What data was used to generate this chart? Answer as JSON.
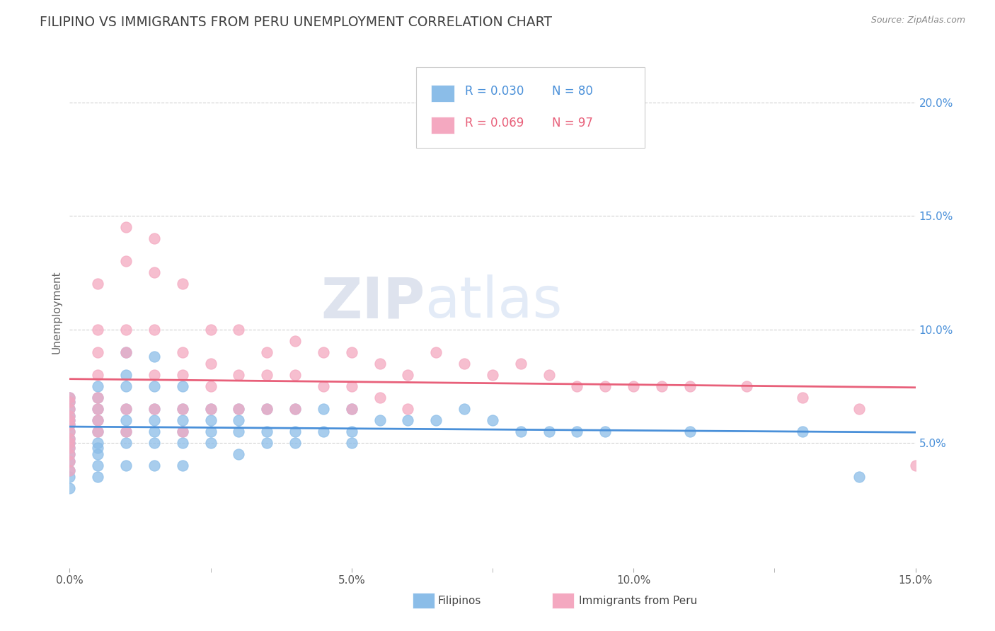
{
  "title": "FILIPINO VS IMMIGRANTS FROM PERU UNEMPLOYMENT CORRELATION CHART",
  "source_text": "Source: ZipAtlas.com",
  "ylabel": "Unemployment",
  "xlim": [
    0.0,
    0.15
  ],
  "ylim": [
    -0.005,
    0.22
  ],
  "xtick_labels": [
    "0.0%",
    "",
    "5.0%",
    "",
    "10.0%",
    "",
    "15.0%"
  ],
  "xtick_values": [
    0.0,
    0.025,
    0.05,
    0.075,
    0.1,
    0.125,
    0.15
  ],
  "ytick_labels": [
    "5.0%",
    "10.0%",
    "15.0%",
    "20.0%"
  ],
  "ytick_values": [
    0.05,
    0.1,
    0.15,
    0.2
  ],
  "filipino_color": "#8bbde8",
  "peru_color": "#f4a8c0",
  "filipino_line_color": "#4a90d9",
  "peru_line_color": "#e8607a",
  "legend_color_filipino": "#4a90d9",
  "legend_color_peru": "#e8607a",
  "watermark_zip": "ZIP",
  "watermark_atlas": "atlas",
  "background_color": "#ffffff",
  "title_color": "#404040",
  "title_fontsize": 13.5,
  "filipino_scatter_x": [
    0.0,
    0.0,
    0.0,
    0.0,
    0.0,
    0.0,
    0.0,
    0.0,
    0.0,
    0.0,
    0.0,
    0.0,
    0.0,
    0.0,
    0.0,
    0.005,
    0.005,
    0.005,
    0.005,
    0.005,
    0.005,
    0.005,
    0.005,
    0.005,
    0.005,
    0.01,
    0.01,
    0.01,
    0.01,
    0.01,
    0.01,
    0.01,
    0.01,
    0.015,
    0.015,
    0.015,
    0.015,
    0.015,
    0.015,
    0.015,
    0.02,
    0.02,
    0.02,
    0.02,
    0.02,
    0.02,
    0.025,
    0.025,
    0.025,
    0.025,
    0.03,
    0.03,
    0.03,
    0.03,
    0.035,
    0.035,
    0.035,
    0.04,
    0.04,
    0.04,
    0.045,
    0.045,
    0.05,
    0.05,
    0.05,
    0.055,
    0.06,
    0.065,
    0.07,
    0.075,
    0.08,
    0.085,
    0.09,
    0.095,
    0.11,
    0.13,
    0.14
  ],
  "filipino_scatter_y": [
    0.07,
    0.068,
    0.065,
    0.062,
    0.06,
    0.058,
    0.055,
    0.052,
    0.05,
    0.048,
    0.045,
    0.042,
    0.038,
    0.035,
    0.03,
    0.075,
    0.07,
    0.065,
    0.06,
    0.055,
    0.05,
    0.048,
    0.045,
    0.04,
    0.035,
    0.09,
    0.08,
    0.075,
    0.065,
    0.06,
    0.055,
    0.05,
    0.04,
    0.088,
    0.075,
    0.065,
    0.06,
    0.055,
    0.05,
    0.04,
    0.075,
    0.065,
    0.06,
    0.055,
    0.05,
    0.04,
    0.065,
    0.06,
    0.055,
    0.05,
    0.065,
    0.06,
    0.055,
    0.045,
    0.065,
    0.055,
    0.05,
    0.065,
    0.055,
    0.05,
    0.065,
    0.055,
    0.065,
    0.055,
    0.05,
    0.06,
    0.06,
    0.06,
    0.065,
    0.06,
    0.055,
    0.055,
    0.055,
    0.055,
    0.055,
    0.055,
    0.035
  ],
  "peru_scatter_x": [
    0.0,
    0.0,
    0.0,
    0.0,
    0.0,
    0.0,
    0.0,
    0.0,
    0.0,
    0.0,
    0.0,
    0.0,
    0.0,
    0.005,
    0.005,
    0.005,
    0.005,
    0.005,
    0.005,
    0.005,
    0.005,
    0.01,
    0.01,
    0.01,
    0.01,
    0.01,
    0.01,
    0.015,
    0.015,
    0.015,
    0.015,
    0.015,
    0.02,
    0.02,
    0.02,
    0.02,
    0.02,
    0.025,
    0.025,
    0.025,
    0.025,
    0.03,
    0.03,
    0.03,
    0.035,
    0.035,
    0.035,
    0.04,
    0.04,
    0.04,
    0.045,
    0.045,
    0.05,
    0.05,
    0.05,
    0.055,
    0.055,
    0.06,
    0.06,
    0.065,
    0.07,
    0.075,
    0.08,
    0.085,
    0.09,
    0.095,
    0.1,
    0.105,
    0.11,
    0.12,
    0.13,
    0.14,
    0.15
  ],
  "peru_scatter_y": [
    0.07,
    0.068,
    0.065,
    0.062,
    0.06,
    0.058,
    0.055,
    0.052,
    0.05,
    0.048,
    0.045,
    0.042,
    0.038,
    0.12,
    0.1,
    0.09,
    0.08,
    0.07,
    0.065,
    0.06,
    0.055,
    0.145,
    0.13,
    0.1,
    0.09,
    0.065,
    0.055,
    0.14,
    0.125,
    0.1,
    0.08,
    0.065,
    0.12,
    0.09,
    0.08,
    0.065,
    0.055,
    0.1,
    0.085,
    0.075,
    0.065,
    0.1,
    0.08,
    0.065,
    0.09,
    0.08,
    0.065,
    0.095,
    0.08,
    0.065,
    0.09,
    0.075,
    0.09,
    0.075,
    0.065,
    0.085,
    0.07,
    0.08,
    0.065,
    0.09,
    0.085,
    0.08,
    0.085,
    0.08,
    0.075,
    0.075,
    0.075,
    0.075,
    0.075,
    0.075,
    0.07,
    0.065,
    0.04
  ]
}
